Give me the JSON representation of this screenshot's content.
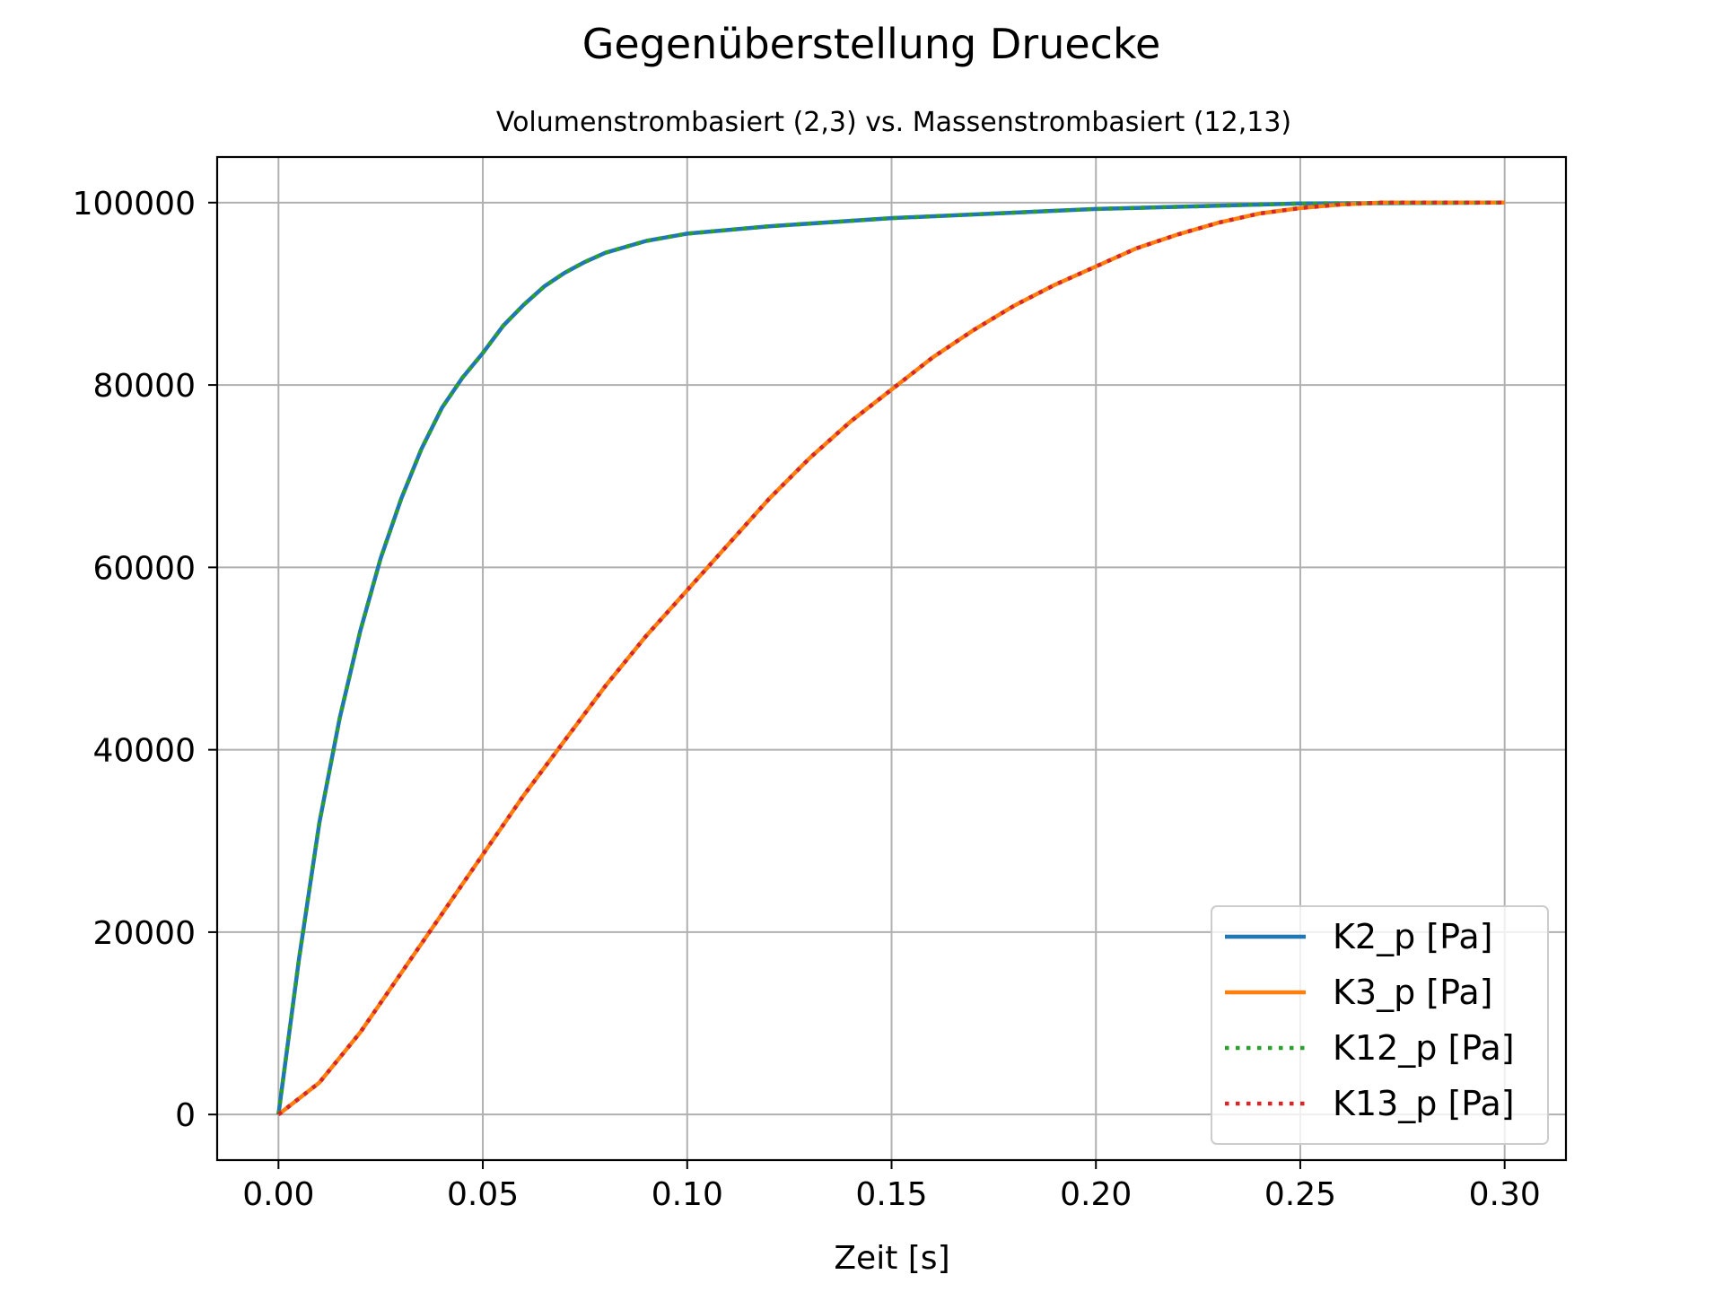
{
  "chart_data": {
    "type": "line",
    "title": "Gegenüberstellung Druecke",
    "subtitle": "Volumenstrombasiert (2,3) vs. Massenstrombasiert (12,13)",
    "xlabel": "Zeit [s]",
    "ylabel": "",
    "xlim": [
      -0.015,
      0.315
    ],
    "ylim": [
      -5000,
      105000
    ],
    "xticks": [
      0.0,
      0.05,
      0.1,
      0.15,
      0.2,
      0.25,
      0.3
    ],
    "xtick_labels": [
      "0.00",
      "0.05",
      "0.10",
      "0.15",
      "0.20",
      "0.25",
      "0.30"
    ],
    "yticks": [
      0,
      20000,
      40000,
      60000,
      80000,
      100000
    ],
    "ytick_labels": [
      "0",
      "20000",
      "40000",
      "60000",
      "80000",
      "100000"
    ],
    "grid": true,
    "legend_position": "lower-right",
    "series": [
      {
        "name": "K2_p [Pa]",
        "color": "#1f77b4",
        "style": "solid",
        "x": [
          0,
          0.005,
          0.01,
          0.015,
          0.02,
          0.025,
          0.03,
          0.035,
          0.04,
          0.045,
          0.05,
          0.055,
          0.06,
          0.065,
          0.07,
          0.075,
          0.08,
          0.09,
          0.1,
          0.12,
          0.15,
          0.2,
          0.25,
          0.3
        ],
        "y": [
          0,
          17000,
          32000,
          43500,
          53000,
          61000,
          67500,
          73000,
          77500,
          80800,
          83500,
          86500,
          88800,
          90800,
          92300,
          93500,
          94500,
          95800,
          96600,
          97400,
          98300,
          99300,
          99900,
          100000
        ]
      },
      {
        "name": "K3_p [Pa]",
        "color": "#ff7f0e",
        "style": "solid",
        "x": [
          0,
          0.01,
          0.02,
          0.03,
          0.04,
          0.05,
          0.06,
          0.07,
          0.08,
          0.09,
          0.1,
          0.11,
          0.12,
          0.13,
          0.14,
          0.15,
          0.16,
          0.17,
          0.18,
          0.19,
          0.2,
          0.21,
          0.22,
          0.23,
          0.24,
          0.25,
          0.26,
          0.27,
          0.28,
          0.29,
          0.3
        ],
        "y": [
          0,
          3500,
          9000,
          15500,
          22000,
          28500,
          35000,
          41000,
          47000,
          52500,
          57500,
          62500,
          67500,
          72000,
          76000,
          79500,
          83000,
          86000,
          88700,
          91000,
          93000,
          95000,
          96500,
          97800,
          98800,
          99400,
          99800,
          100000,
          100000,
          100000,
          100000
        ]
      },
      {
        "name": "K12_p [Pa]",
        "color": "#2ca02c",
        "style": "dotted",
        "x": [
          0,
          0.005,
          0.01,
          0.015,
          0.02,
          0.025,
          0.03,
          0.035,
          0.04,
          0.045,
          0.05,
          0.055,
          0.06,
          0.065,
          0.07,
          0.075,
          0.08,
          0.09,
          0.1,
          0.12,
          0.15,
          0.2,
          0.25,
          0.3
        ],
        "y": [
          0,
          17000,
          32000,
          43500,
          53000,
          61000,
          67500,
          73000,
          77500,
          80800,
          83500,
          86500,
          88800,
          90800,
          92300,
          93500,
          94500,
          95800,
          96600,
          97400,
          98300,
          99300,
          99900,
          100000
        ]
      },
      {
        "name": "K13_p [Pa]",
        "color": "#d62728",
        "style": "dotted",
        "x": [
          0,
          0.01,
          0.02,
          0.03,
          0.04,
          0.05,
          0.06,
          0.07,
          0.08,
          0.09,
          0.1,
          0.11,
          0.12,
          0.13,
          0.14,
          0.15,
          0.16,
          0.17,
          0.18,
          0.19,
          0.2,
          0.21,
          0.22,
          0.23,
          0.24,
          0.25,
          0.26,
          0.27,
          0.28,
          0.29,
          0.3
        ],
        "y": [
          0,
          3500,
          9000,
          15500,
          22000,
          28500,
          35000,
          41000,
          47000,
          52500,
          57500,
          62500,
          67500,
          72000,
          76000,
          79500,
          83000,
          86000,
          88700,
          91000,
          93000,
          95000,
          96500,
          97800,
          98800,
          99400,
          99800,
          100000,
          100000,
          100000,
          100000
        ]
      }
    ]
  }
}
